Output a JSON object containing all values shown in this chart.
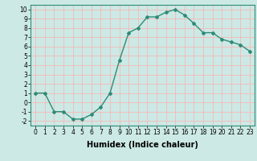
{
  "x": [
    0,
    1,
    2,
    3,
    4,
    5,
    6,
    7,
    8,
    9,
    10,
    11,
    12,
    13,
    14,
    15,
    16,
    17,
    18,
    19,
    20,
    21,
    22,
    23
  ],
  "y": [
    1,
    1,
    -1,
    -1,
    -1.8,
    -1.8,
    -1.3,
    -0.5,
    1,
    4.5,
    7.5,
    8,
    9.2,
    9.2,
    9.7,
    10,
    9.4,
    8.5,
    7.5,
    7.5,
    6.8,
    6.5,
    6.2,
    5.5
  ],
  "line_color": "#2e8b77",
  "marker": "D",
  "marker_size": 2,
  "linewidth": 1.0,
  "xlabel": "Humidex (Indice chaleur)",
  "xlim": [
    -0.5,
    23.5
  ],
  "ylim": [
    -2.5,
    10.5
  ],
  "yticks": [
    -2,
    -1,
    0,
    1,
    2,
    3,
    4,
    5,
    6,
    7,
    8,
    9,
    10
  ],
  "xticks": [
    0,
    1,
    2,
    3,
    4,
    5,
    6,
    7,
    8,
    9,
    10,
    11,
    12,
    13,
    14,
    15,
    16,
    17,
    18,
    19,
    20,
    21,
    22,
    23
  ],
  "bg_color": "#cce9e5",
  "grid_color": "#f5b8b8",
  "tick_label_fontsize": 5.5,
  "xlabel_fontsize": 7.0
}
